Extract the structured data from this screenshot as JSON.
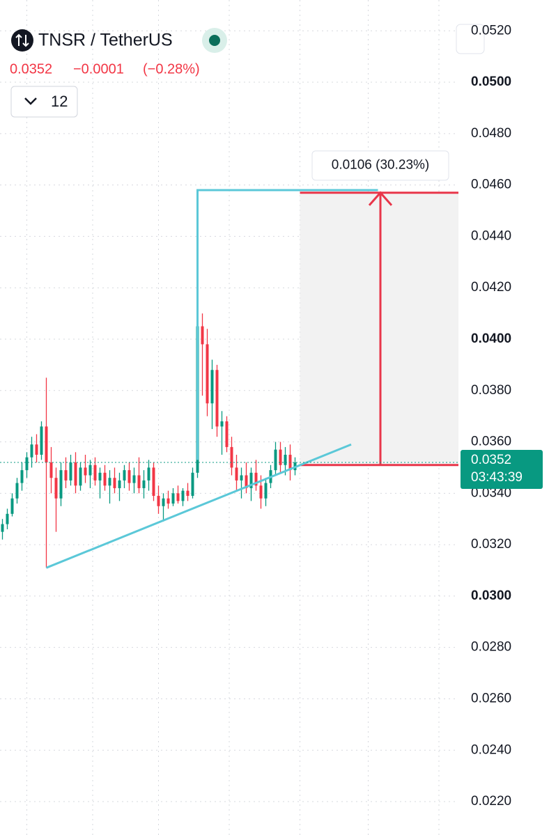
{
  "header": {
    "symbol": "TNSR / TetherUS",
    "price": "0.0352",
    "change": "−0.0001",
    "change_pct": "(−0.28%)",
    "interval": "12"
  },
  "chart_data": {
    "type": "candlestick",
    "up_color": "#089981",
    "down_color": "#f23645",
    "xlim": [
      -0.5,
      93.5
    ],
    "ylim": [
      0.0207,
      0.0532
    ],
    "xticks": [
      5,
      18.5,
      32,
      46.5,
      61,
      75,
      89.5
    ],
    "yticks": [
      {
        "value": 0.052,
        "label": "0.0520"
      },
      {
        "value": 0.05,
        "label": "0.0500",
        "bold": true
      },
      {
        "value": 0.048,
        "label": "0.0480"
      },
      {
        "value": 0.046,
        "label": "0.0460"
      },
      {
        "value": 0.044,
        "label": "0.0440"
      },
      {
        "value": 0.042,
        "label": "0.0420"
      },
      {
        "value": 0.04,
        "label": "0.0400",
        "bold": true
      },
      {
        "value": 0.038,
        "label": "0.0380"
      },
      {
        "value": 0.036,
        "label": "0.0360"
      },
      {
        "value": 0.034,
        "label": "0.0340"
      },
      {
        "value": 0.032,
        "label": "0.0320"
      },
      {
        "value": 0.03,
        "label": "0.0300",
        "bold": true
      },
      {
        "value": 0.028,
        "label": "0.0280"
      },
      {
        "value": 0.026,
        "label": "0.0260"
      },
      {
        "value": 0.024,
        "label": "0.0240"
      },
      {
        "value": 0.022,
        "label": "0.0220"
      }
    ],
    "grid": true,
    "open": [
      0.0325,
      0.0328,
      0.0332,
      0.0338,
      0.0344,
      0.0349,
      0.0354,
      0.0359,
      0.0355,
      0.0366,
      0.0352,
      0.0346,
      0.0338,
      0.0349,
      0.0345,
      0.0352,
      0.0343,
      0.035,
      0.0347,
      0.0351,
      0.0345,
      0.0348,
      0.0343,
      0.0346,
      0.0342,
      0.0345,
      0.0349,
      0.0344,
      0.0347,
      0.0342,
      0.0345,
      0.035,
      0.0339,
      0.0335,
      0.0338,
      0.0336,
      0.034,
      0.0337,
      0.0341,
      0.0339,
      0.0348,
      0.0405,
      0.0398,
      0.0375,
      0.0388,
      0.0366,
      0.0368,
      0.0358,
      0.035,
      0.0345,
      0.0347,
      0.0342,
      0.0348,
      0.0343,
      0.0338,
      0.0344,
      0.0349,
      0.0357,
      0.0351,
      0.0355,
      0.0349
    ],
    "high": [
      0.033,
      0.0334,
      0.034,
      0.0346,
      0.0352,
      0.0356,
      0.0362,
      0.0363,
      0.0368,
      0.0385,
      0.0358,
      0.035,
      0.0352,
      0.0354,
      0.0355,
      0.0356,
      0.0352,
      0.0355,
      0.0353,
      0.0354,
      0.035,
      0.0351,
      0.0349,
      0.035,
      0.0348,
      0.0351,
      0.0352,
      0.035,
      0.0354,
      0.0349,
      0.0353,
      0.0352,
      0.0343,
      0.034,
      0.0341,
      0.0342,
      0.0343,
      0.0342,
      0.0344,
      0.035,
      0.0445,
      0.041,
      0.0404,
      0.0392,
      0.039,
      0.0372,
      0.037,
      0.0362,
      0.0355,
      0.035,
      0.0352,
      0.035,
      0.0353,
      0.0347,
      0.0346,
      0.0351,
      0.036,
      0.036,
      0.0358,
      0.0359,
      0.0354
    ],
    "low": [
      0.0322,
      0.0326,
      0.0331,
      0.0336,
      0.0341,
      0.0346,
      0.035,
      0.0352,
      0.0353,
      0.0311,
      0.034,
      0.0325,
      0.0335,
      0.0342,
      0.0343,
      0.034,
      0.0341,
      0.0344,
      0.0342,
      0.0343,
      0.0338,
      0.0341,
      0.0336,
      0.034,
      0.0337,
      0.0342,
      0.0341,
      0.034,
      0.034,
      0.0338,
      0.0341,
      0.0337,
      0.0332,
      0.0329,
      0.0334,
      0.0335,
      0.0336,
      0.0335,
      0.0337,
      0.0338,
      0.0346,
      0.0378,
      0.037,
      0.0365,
      0.0362,
      0.0355,
      0.0356,
      0.0347,
      0.0341,
      0.0338,
      0.034,
      0.0337,
      0.0341,
      0.0334,
      0.0335,
      0.0342,
      0.0347,
      0.0348,
      0.0347,
      0.0345,
      0.0347
    ],
    "close": [
      0.0328,
      0.0332,
      0.0338,
      0.0344,
      0.0349,
      0.0354,
      0.0359,
      0.0355,
      0.0366,
      0.0352,
      0.0346,
      0.0338,
      0.0349,
      0.0345,
      0.0352,
      0.0343,
      0.035,
      0.0347,
      0.0351,
      0.0345,
      0.0348,
      0.0343,
      0.0346,
      0.0342,
      0.0345,
      0.0349,
      0.0344,
      0.0347,
      0.0342,
      0.0345,
      0.035,
      0.0339,
      0.0335,
      0.0338,
      0.0336,
      0.034,
      0.0337,
      0.0341,
      0.0339,
      0.0348,
      0.0405,
      0.0398,
      0.0375,
      0.0388,
      0.0366,
      0.0368,
      0.0358,
      0.035,
      0.0345,
      0.0347,
      0.0342,
      0.0348,
      0.0343,
      0.0338,
      0.0344,
      0.0349,
      0.0357,
      0.0351,
      0.0355,
      0.0349,
      0.0352
    ],
    "last_price": {
      "value": 0.0352,
      "label": "0.0352",
      "countdown": "03:43:39"
    },
    "trend_line": {
      "x": [
        9,
        71.5
      ],
      "y": [
        0.0311,
        0.0359
      ],
      "color": "#5bc8d8"
    },
    "projection_line": {
      "x": [
        40,
        40,
        77
      ],
      "y": [
        0.0353,
        0.0458,
        0.0458
      ],
      "color": "#5bc8d8"
    },
    "measure": {
      "x": [
        61,
        93.5
      ],
      "from": 0.0351,
      "to": 0.0457,
      "arrow_x": 77.5,
      "label": "0.0106 (30.23%)",
      "color": "#e8364a"
    }
  }
}
